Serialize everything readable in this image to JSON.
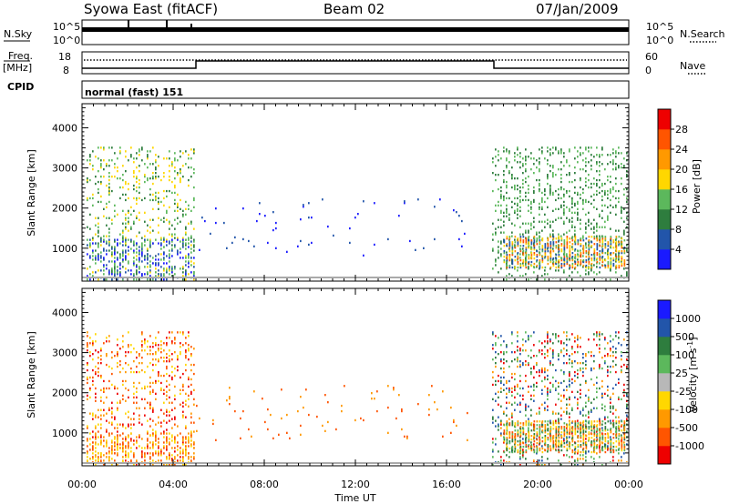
{
  "header": {
    "title": "Syowa East (fitACF)",
    "beam": "Beam 02",
    "date": "07/Jan/2009"
  },
  "top_panels": {
    "nsky_label": "N.Sky",
    "nsearch_label": "N.Search",
    "noise_ticks": [
      "10^5",
      "10^0"
    ],
    "freq_label_1": "Freq.",
    "freq_label_2": "[MHz]",
    "freq_ticks": [
      "18",
      "8"
    ],
    "nave_label": "Nave",
    "nave_ticks": [
      "60",
      "0"
    ],
    "cpid_label": "CPID",
    "cpid_value": "normal (fast) 151"
  },
  "x_axis": {
    "label": "Time UT",
    "ticks": [
      "00:00",
      "04:00",
      "08:00",
      "12:00",
      "16:00",
      "20:00",
      "00:00"
    ]
  },
  "chart_data": [
    {
      "type": "heatmap",
      "panel": "power",
      "ylabel": "Slant Range [km]",
      "yticks": [
        "1000",
        "2000",
        "3000",
        "4000"
      ],
      "ylim": [
        180,
        4600
      ],
      "xlim": [
        0,
        24
      ],
      "colorbar_label": "Power [dB]",
      "colorbar_ticks": [
        "4",
        "8",
        "12",
        "16",
        "20",
        "24",
        "28"
      ],
      "colorbar_colors": [
        "#1a1aff",
        "#2255aa",
        "#2e7d3e",
        "#5cb85c",
        "#ffd700",
        "#ff9900",
        "#ff5500",
        "#ee0000"
      ],
      "regions": [
        {
          "x": [
            0.2,
            5.0
          ],
          "y": [
            200,
            3500
          ],
          "density": 0.18,
          "levels": [
            2,
            3,
            4
          ]
        },
        {
          "x": [
            0.2,
            5.0
          ],
          "y": [
            200,
            1200
          ],
          "density": 0.28,
          "levels": [
            0,
            1,
            3
          ]
        },
        {
          "x": [
            5.0,
            17.0
          ],
          "y": [
            800,
            2200
          ],
          "density": 0.02,
          "levels": [
            0,
            1
          ]
        },
        {
          "x": [
            18.0,
            24.0
          ],
          "y": [
            200,
            3500
          ],
          "density": 0.22,
          "levels": [
            2,
            3
          ]
        },
        {
          "x": [
            18.5,
            23.8
          ],
          "y": [
            500,
            1300
          ],
          "density": 0.6,
          "levels": [
            4,
            5,
            6,
            3,
            1
          ]
        }
      ]
    },
    {
      "type": "heatmap",
      "panel": "velocity",
      "ylabel": "Slant Range [km]",
      "yticks": [
        "1000",
        "2000",
        "3000",
        "4000"
      ],
      "ylim": [
        180,
        4600
      ],
      "xlim": [
        0,
        24
      ],
      "colorbar_label": "Velocity [m s^-1]",
      "colorbar_ticks": [
        "1000",
        "500",
        "100",
        "25",
        "-25",
        "-100",
        "-500",
        "-1000"
      ],
      "colorbar_colors": [
        "#1a1aff",
        "#2255aa",
        "#2e7d3e",
        "#5cb85c",
        "#b8b8b8",
        "#ffd700",
        "#ff9900",
        "#ff5500",
        "#ee0000"
      ],
      "regions": [
        {
          "x": [
            0.2,
            5.0
          ],
          "y": [
            200,
            3500
          ],
          "density": 0.18,
          "levels": [
            6,
            7,
            5,
            8
          ]
        },
        {
          "x": [
            0.2,
            5.0
          ],
          "y": [
            200,
            1000
          ],
          "density": 0.35,
          "levels": [
            6,
            5,
            7
          ]
        },
        {
          "x": [
            5.0,
            17.0
          ],
          "y": [
            800,
            2200
          ],
          "density": 0.02,
          "levels": [
            6,
            7
          ]
        },
        {
          "x": [
            18.0,
            24.0
          ],
          "y": [
            200,
            3500
          ],
          "density": 0.22,
          "levels": [
            1,
            2,
            3,
            6,
            8
          ]
        },
        {
          "x": [
            18.5,
            23.8
          ],
          "y": [
            500,
            1300
          ],
          "density": 0.6,
          "levels": [
            6,
            7,
            3,
            2,
            5
          ]
        }
      ]
    }
  ]
}
